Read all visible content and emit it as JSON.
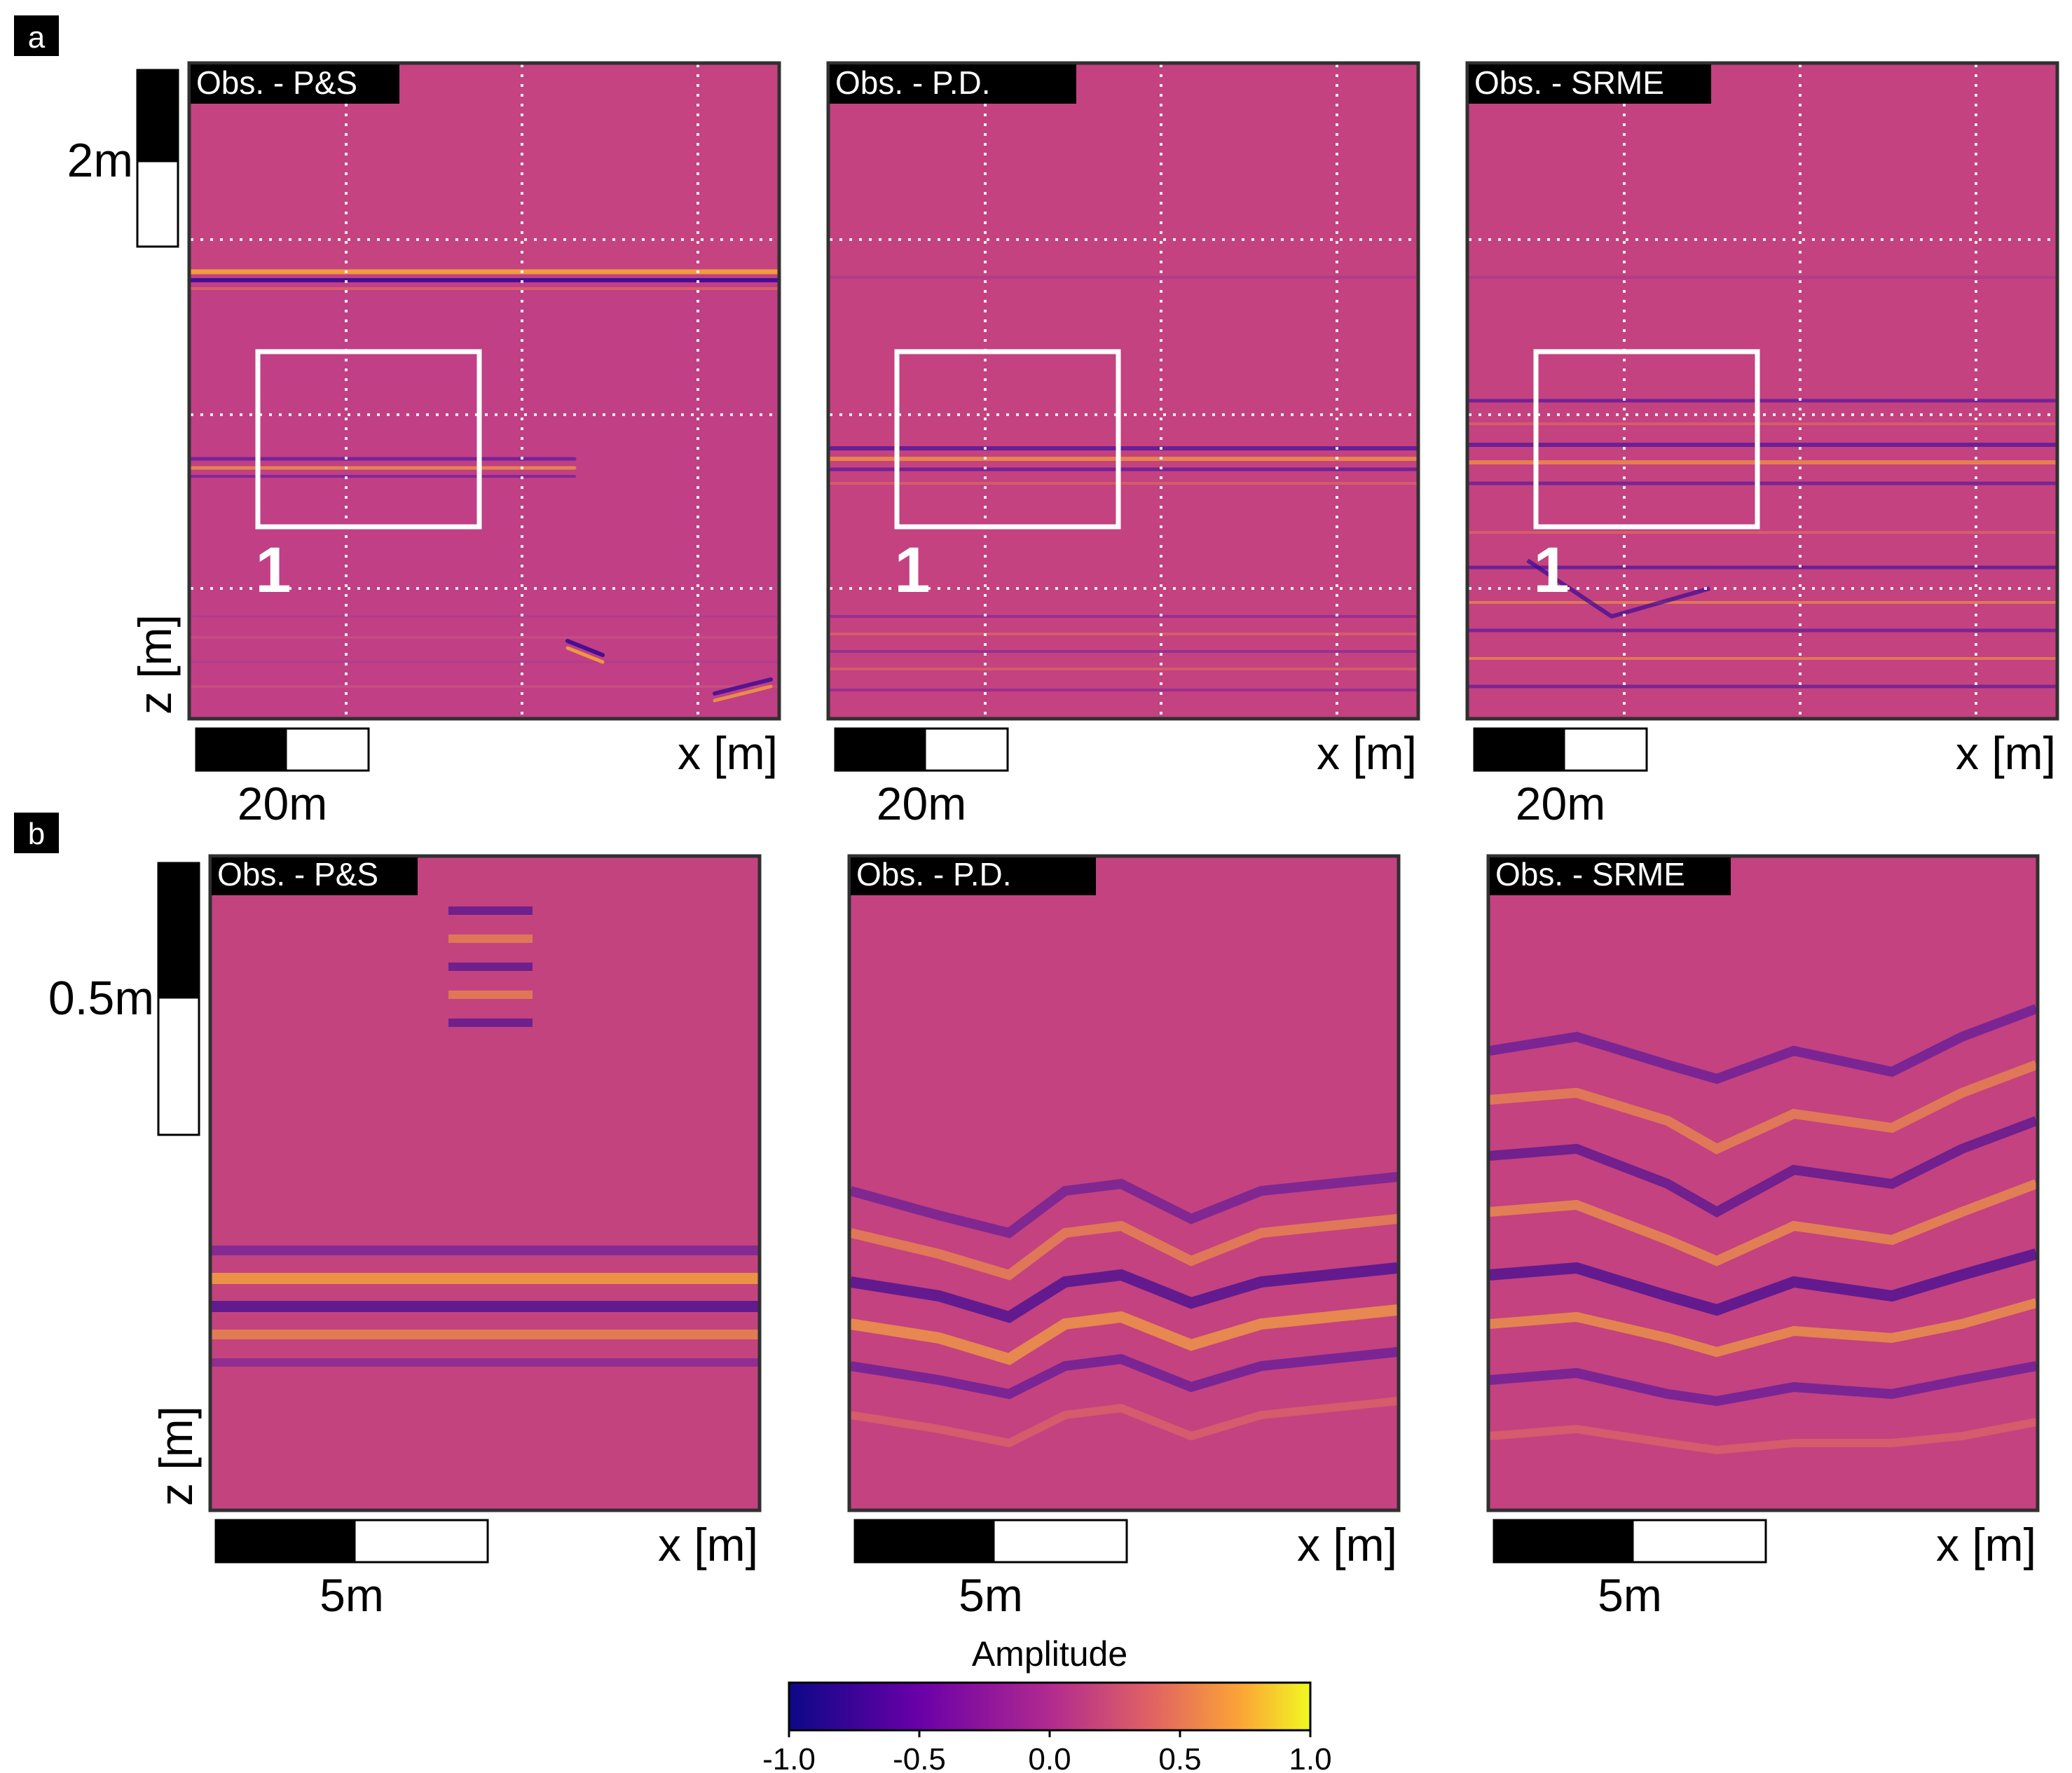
{
  "figure": {
    "panels": [
      {
        "letter": "a",
        "z_scale_label": "2m",
        "z_axis_label": "z [m]",
        "x_axis_label": "x [m]",
        "x_scale_label": "20m",
        "box_label": "1",
        "subplots": [
          {
            "title": "Obs. - P&S"
          },
          {
            "title": "Obs. - P.D."
          },
          {
            "title": "Obs. - SRME"
          }
        ]
      },
      {
        "letter": "b",
        "z_scale_label": "0.5m",
        "z_axis_label": "z [m]",
        "x_axis_label": "x [m]",
        "x_scale_label": "5m",
        "subplots": [
          {
            "title": "Obs. - P&S"
          },
          {
            "title": "Obs. - P.D."
          },
          {
            "title": "Obs. - SRME"
          }
        ]
      }
    ],
    "colorbar": {
      "label": "Amplitude",
      "ticks": [
        "-1.0",
        "-0.5",
        "0.0",
        "0.5",
        "1.0"
      ],
      "range": [
        -1.0,
        1.0
      ],
      "colormap": "plasma",
      "colors": [
        "#0d0887",
        "#6a00a8",
        "#b12a90",
        "#e16462",
        "#fca636",
        "#f0f921"
      ]
    }
  }
}
